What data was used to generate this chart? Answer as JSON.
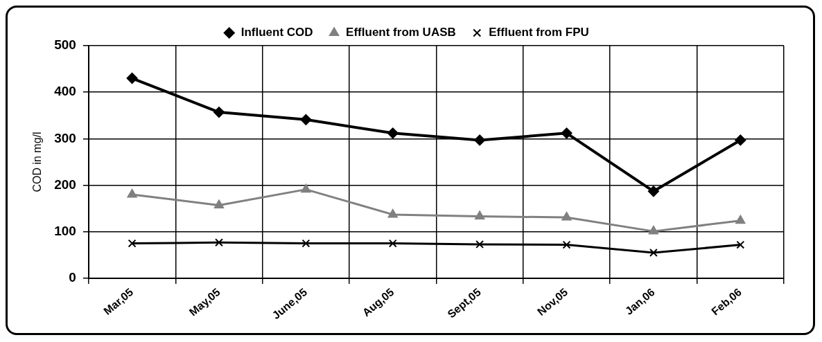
{
  "chart_data": {
    "type": "line",
    "ylabel": "COD in mg/l",
    "categories": [
      "Mar,05",
      "May,05",
      "June,05",
      "Aug,05",
      "Sept,05",
      "Nov,05",
      "Jan,06",
      "Feb,06"
    ],
    "series": [
      {
        "name": "Influent COD",
        "color": "#000000",
        "marker": "diamond",
        "values": [
          430,
          357,
          341,
          312,
          297,
          312,
          187,
          297
        ]
      },
      {
        "name": "Effluent from UASB",
        "color": "#808080",
        "marker": "triangle",
        "values": [
          180,
          157,
          191,
          137,
          133,
          131,
          101,
          124
        ]
      },
      {
        "name": "Effluent from FPU",
        "color": "#000000",
        "marker": "cross",
        "values": [
          75,
          77,
          75,
          75,
          73,
          72,
          55,
          72
        ]
      }
    ],
    "ylim": [
      0,
      500
    ],
    "yticks": [
      0,
      100,
      200,
      300,
      400,
      500
    ],
    "grid": true,
    "legend": "top",
    "line_style": "solid"
  }
}
